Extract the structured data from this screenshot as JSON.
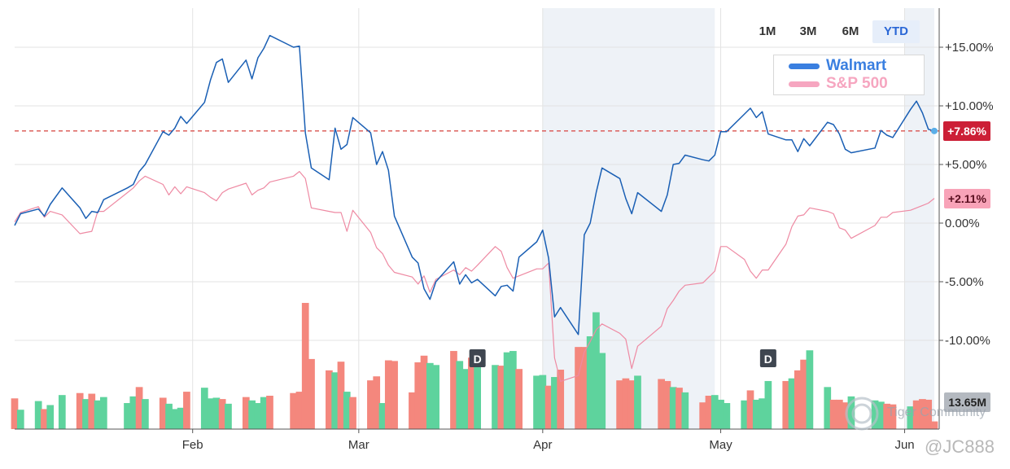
{
  "range_buttons": [
    {
      "label": "1M",
      "active": false
    },
    {
      "label": "3M",
      "active": false
    },
    {
      "label": "6M",
      "active": false
    },
    {
      "label": "YTD",
      "active": true
    }
  ],
  "legend": [
    {
      "label": "Walmart",
      "color": "#3a7fe0"
    },
    {
      "label": "S&P 500",
      "color": "#f6a6c0"
    }
  ],
  "current_values": {
    "walmart": {
      "label": "+7.86%",
      "bg": "#cc1f36",
      "fg": "#ffffff"
    },
    "sp500": {
      "label": "+2.11%",
      "bg": "#f8a3b8",
      "fg": "#5a0f20"
    },
    "volume": {
      "label": "13.65M",
      "bg": "#b4b9c0",
      "fg": "#222222"
    }
  },
  "dividend_markers": [
    {
      "label": "D",
      "date": "2025-03-21"
    },
    {
      "label": "D",
      "date": "2025-05-09"
    }
  ],
  "watermark": {
    "brand": "Tiger Community",
    "user": "@JC888"
  },
  "chart_data": {
    "type": "line",
    "xlabel": "",
    "ylabel": "",
    "y_unit": "percent",
    "ylim": [
      -12.5,
      18
    ],
    "yticks": [
      15,
      10,
      5,
      0,
      -5,
      -10
    ],
    "ytick_labels": [
      "+15.00%",
      "+10.00%",
      "+5.00%",
      "0.00%",
      "-5.00%",
      "-10.00%"
    ],
    "x_tick_labels": [
      "Feb",
      "Mar",
      "Apr",
      "May",
      "Jun"
    ],
    "x_tick_dates": [
      "2025-02-01",
      "2025-03-01",
      "2025-04-01",
      "2025-05-01",
      "2025-06-01"
    ],
    "reference_line": {
      "value": 7.86,
      "style": "dashed",
      "color": "#d9534f"
    },
    "shaded_ranges": [
      [
        "2025-04-01",
        "2025-04-30"
      ],
      [
        "2025-06-01",
        "2025-06-06"
      ]
    ],
    "colors": {
      "walmart": "#1a5fb4",
      "sp500": "#ee8aa3",
      "volume_up": "#5ed39d",
      "volume_down": "#f4877d"
    },
    "dates": [
      "2025-01-02",
      "2025-01-03",
      "2025-01-06",
      "2025-01-07",
      "2025-01-08",
      "2025-01-10",
      "2025-01-13",
      "2025-01-14",
      "2025-01-15",
      "2025-01-16",
      "2025-01-17",
      "2025-01-21",
      "2025-01-22",
      "2025-01-23",
      "2025-01-24",
      "2025-01-27",
      "2025-01-28",
      "2025-01-29",
      "2025-01-30",
      "2025-01-31",
      "2025-02-03",
      "2025-02-04",
      "2025-02-05",
      "2025-02-06",
      "2025-02-07",
      "2025-02-10",
      "2025-02-11",
      "2025-02-12",
      "2025-02-13",
      "2025-02-14",
      "2025-02-18",
      "2025-02-19",
      "2025-02-20",
      "2025-02-21",
      "2025-02-24",
      "2025-02-25",
      "2025-02-26",
      "2025-02-27",
      "2025-02-28",
      "2025-03-03",
      "2025-03-04",
      "2025-03-05",
      "2025-03-06",
      "2025-03-07",
      "2025-03-10",
      "2025-03-11",
      "2025-03-12",
      "2025-03-13",
      "2025-03-14",
      "2025-03-17",
      "2025-03-18",
      "2025-03-19",
      "2025-03-20",
      "2025-03-21",
      "2025-03-24",
      "2025-03-25",
      "2025-03-26",
      "2025-03-27",
      "2025-03-28",
      "2025-03-31",
      "2025-04-01",
      "2025-04-02",
      "2025-04-03",
      "2025-04-04",
      "2025-04-07",
      "2025-04-08",
      "2025-04-09",
      "2025-04-10",
      "2025-04-11",
      "2025-04-14",
      "2025-04-15",
      "2025-04-16",
      "2025-04-17",
      "2025-04-21",
      "2025-04-22",
      "2025-04-23",
      "2025-04-24",
      "2025-04-25",
      "2025-04-28",
      "2025-04-29",
      "2025-04-30",
      "2025-05-01",
      "2025-05-02",
      "2025-05-05",
      "2025-05-06",
      "2025-05-07",
      "2025-05-08",
      "2025-05-09",
      "2025-05-12",
      "2025-05-13",
      "2025-05-14",
      "2025-05-15",
      "2025-05-16",
      "2025-05-19",
      "2025-05-20",
      "2025-05-21",
      "2025-05-22",
      "2025-05-23",
      "2025-05-27",
      "2025-05-28",
      "2025-05-29",
      "2025-05-30",
      "2025-06-02",
      "2025-06-03",
      "2025-06-04",
      "2025-06-05",
      "2025-06-06"
    ],
    "series": [
      {
        "name": "Walmart",
        "key": "walmart",
        "values": [
          -0.2,
          0.8,
          1.2,
          0.6,
          1.6,
          3.0,
          1.3,
          0.4,
          1.0,
          0.9,
          2.0,
          3.0,
          3.3,
          4.4,
          5.0,
          7.8,
          7.5,
          8.1,
          9.1,
          8.5,
          10.3,
          12.2,
          13.7,
          14.0,
          12.0,
          13.9,
          12.3,
          14.1,
          14.9,
          16.0,
          15.0,
          15.1,
          7.7,
          4.7,
          3.7,
          8.1,
          6.3,
          6.7,
          9.0,
          7.7,
          5.0,
          6.1,
          4.5,
          0.6,
          -2.9,
          -3.4,
          -5.6,
          -6.5,
          -5.0,
          -3.3,
          -5.2,
          -4.4,
          -5.1,
          -4.8,
          -6.2,
          -5.4,
          -5.3,
          -5.8,
          -2.9,
          -1.6,
          -0.6,
          -3.0,
          -8.0,
          -7.2,
          -9.5,
          -1.0,
          0.0,
          2.6,
          4.7,
          3.8,
          2.1,
          0.8,
          2.6,
          1.0,
          2.4,
          5.0,
          5.1,
          5.8,
          5.4,
          5.3,
          5.8,
          7.8,
          7.8,
          9.3,
          9.8,
          9.0,
          9.5,
          7.6,
          7.1,
          7.1,
          6.1,
          7.2,
          6.6,
          8.6,
          8.4,
          7.6,
          6.3,
          6.0,
          6.4,
          7.9,
          7.5,
          7.3,
          9.7,
          10.4,
          9.4,
          8.0,
          7.86
        ]
      },
      {
        "name": "S&P 500",
        "key": "sp500",
        "values": [
          0.1,
          0.9,
          1.4,
          0.5,
          1.0,
          0.7,
          -0.9,
          -0.8,
          -0.7,
          1.0,
          1.0,
          2.6,
          3.0,
          3.6,
          4.0,
          3.3,
          2.4,
          3.1,
          2.5,
          3.1,
          2.6,
          2.2,
          1.9,
          2.6,
          2.9,
          3.4,
          2.4,
          2.8,
          3.0,
          3.5,
          4.0,
          4.4,
          3.8,
          1.3,
          1.0,
          0.9,
          0.9,
          -0.7,
          1.1,
          -0.8,
          -2.1,
          -2.6,
          -3.6,
          -4.2,
          -4.6,
          -5.2,
          -4.5,
          -5.9,
          -4.8,
          -4.0,
          -4.4,
          -3.8,
          -4.1,
          -3.6,
          -2.0,
          -2.4,
          -3.8,
          -4.7,
          -4.5,
          -3.9,
          -3.9,
          -3.4,
          -11.5,
          -13.5,
          -13.0,
          -11.0,
          -10.1,
          -9.1,
          -8.6,
          -9.4,
          -9.9,
          -12.4,
          -10.5,
          -8.8,
          -7.3,
          -6.6,
          -5.8,
          -5.3,
          -5.1,
          -4.6,
          -4.1,
          -2.0,
          -2.0,
          -3.1,
          -4.1,
          -4.7,
          -4.0,
          -4.0,
          -1.8,
          -0.3,
          0.6,
          0.7,
          1.3,
          1.0,
          0.8,
          -0.4,
          -0.6,
          -1.3,
          -0.2,
          0.5,
          0.5,
          0.9,
          1.1,
          1.3,
          1.5,
          1.7,
          2.11
        ]
      }
    ],
    "volume": {
      "unit": "M",
      "values": [
        17.1,
        15.4,
        16.7,
        15.5,
        16.1,
        17.6,
        17.9,
        17.0,
        17.8,
        16.8,
        17.3,
        16.4,
        17.4,
        18.8,
        17.0,
        17.2,
        16.3,
        15.5,
        15.7,
        18.1,
        18.7,
        17.1,
        17.2,
        17.0,
        16.3,
        17.3,
        16.8,
        16.4,
        17.3,
        17.5,
        17.9,
        18.1,
        31.4,
        23.0,
        21.3,
        21.0,
        22.6,
        18.1,
        17.3,
        19.8,
        20.4,
        16.4,
        22.8,
        22.7,
        18.0,
        22.5,
        23.5,
        22.4,
        22.1,
        24.2,
        22.7,
        21.5,
        23.2,
        24.3,
        22.1,
        22.0,
        24.0,
        24.2,
        21.5,
        20.5,
        20.6,
        19.0,
        20.3,
        21.4,
        24.8,
        24.8,
        26.4,
        30.0,
        23.9,
        19.8,
        20.1,
        19.8,
        20.5,
        20.0,
        19.7,
        18.8,
        18.7,
        18.0,
        16.5,
        17.5,
        17.6,
        16.9,
        16.4,
        16.8,
        18.3,
        16.9,
        17.1,
        19.7,
        19.7,
        20.1,
        21.3,
        22.9,
        24.3,
        18.8,
        16.9,
        16.9,
        16.5,
        17.4,
        16.8,
        16.6,
        16.3,
        16.2,
        15.9,
        16.8,
        17.0,
        16.9,
        13.65
      ],
      "direction": [
        "down",
        "up",
        "up",
        "down",
        "up",
        "up",
        "down",
        "up",
        "down",
        "up",
        "up",
        "up",
        "up",
        "down",
        "up",
        "down",
        "up",
        "up",
        "up",
        "down",
        "up",
        "up",
        "up",
        "down",
        "up",
        "down",
        "up",
        "up",
        "up",
        "down",
        "down",
        "down",
        "down",
        "down",
        "down",
        "up",
        "down",
        "up",
        "down",
        "down",
        "down",
        "up",
        "down",
        "down",
        "down",
        "down",
        "down",
        "up",
        "up",
        "down",
        "up",
        "up",
        "down",
        "up",
        "up",
        "down",
        "up",
        "up",
        "down",
        "up",
        "up",
        "down",
        "up",
        "down",
        "down",
        "down",
        "up",
        "up",
        "up",
        "down",
        "down",
        "down",
        "up",
        "down",
        "down",
        "up",
        "down",
        "up",
        "down",
        "down",
        "up",
        "up",
        "up",
        "up",
        "down",
        "up",
        "up",
        "up",
        "down",
        "up",
        "down",
        "down",
        "up",
        "up",
        "down",
        "down",
        "down",
        "up",
        "up",
        "up",
        "down",
        "down",
        "up",
        "down",
        "down",
        "down",
        "down"
      ]
    }
  }
}
